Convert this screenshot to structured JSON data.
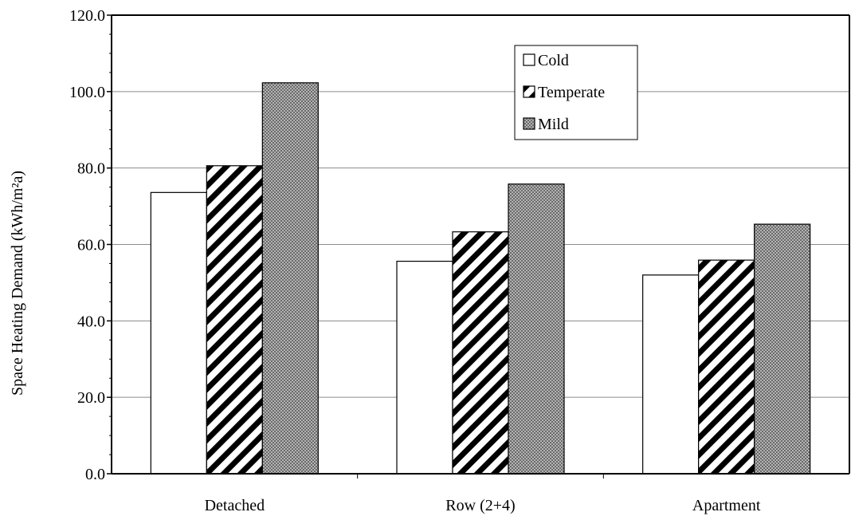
{
  "chart_data": {
    "type": "bar",
    "title": "",
    "xlabel": "",
    "ylabel": "Space Heating Demand (kWh/m²a)",
    "ylim": [
      0,
      120
    ],
    "yticks": [
      "0.0",
      "20.0",
      "40.0",
      "60.0",
      "80.0",
      "100.0",
      "120.0"
    ],
    "grid": true,
    "legend_position": "top-right",
    "categories": [
      "Detached",
      "Row (2+4)",
      "Apartment"
    ],
    "series": [
      {
        "name": "Cold",
        "pattern": "white",
        "values": [
          73.6,
          55.6,
          52.0
        ]
      },
      {
        "name": "Temperate",
        "pattern": "diagonal-hatch",
        "values": [
          80.6,
          63.3,
          55.9
        ]
      },
      {
        "name": "Mild",
        "pattern": "crosshatch-dots",
        "values": [
          102.3,
          75.8,
          65.3
        ]
      }
    ]
  }
}
